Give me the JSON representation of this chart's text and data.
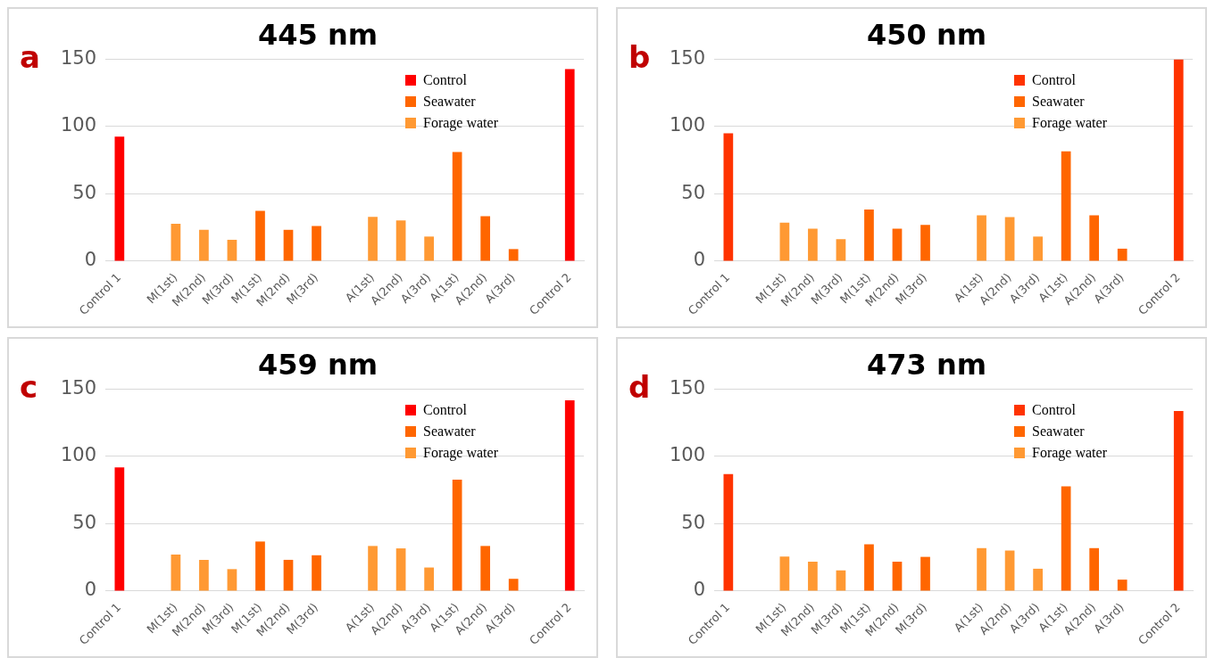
{
  "chart_data": [
    {
      "type": "bar",
      "title": "445 nm",
      "annotations": [
        "a"
      ],
      "categories": [
        "Control 1",
        null,
        "M(1st)",
        "M(2nd)",
        "M(3rd)",
        "M(1st)",
        "M(2nd)",
        "M(3rd)",
        null,
        "A(1st)",
        "A(2nd)",
        "A(3rd)",
        "A(1st)",
        "A(2nd)",
        "A(3rd)",
        null,
        "Control 2"
      ],
      "ylim": [
        0,
        150
      ],
      "yticks": [
        0,
        50,
        100,
        150
      ],
      "grid": "y",
      "legend": "top right",
      "series": [
        {
          "name": "Control",
          "color": "#ff0000",
          "values": [
            92.5,
            null,
            null,
            null,
            null,
            null,
            null,
            null,
            null,
            null,
            null,
            null,
            null,
            null,
            null,
            null,
            142.6
          ]
        },
        {
          "name": "Seawater",
          "color": "#ff6600",
          "values": [
            null,
            null,
            null,
            null,
            null,
            37.4,
            23.3,
            26.2,
            null,
            null,
            null,
            null,
            81.1,
            33.4,
            9.0,
            null,
            null
          ]
        },
        {
          "name": "Forage water",
          "color": "#ff9933",
          "values": [
            null,
            null,
            27.8,
            23.3,
            15.9,
            null,
            null,
            null,
            null,
            32.9,
            30.2,
            18.3,
            null,
            null,
            null,
            null,
            null
          ]
        }
      ]
    },
    {
      "type": "bar",
      "title": "450 nm",
      "annotations": [
        "b"
      ],
      "categories": [
        "Control 1",
        null,
        "M(1st)",
        "M(2nd)",
        "M(3rd)",
        "M(1st)",
        "M(2nd)",
        "M(3rd)",
        null,
        "A(1st)",
        "A(2nd)",
        "A(3rd)",
        "A(1st)",
        "A(2nd)",
        "A(3rd)",
        null,
        "Control 2"
      ],
      "ylim": [
        0,
        150
      ],
      "yticks": [
        0,
        50,
        100,
        150
      ],
      "grid": "y",
      "legend": "top right",
      "series": [
        {
          "name": "Control",
          "color": "#ff3300",
          "values": [
            95,
            null,
            null,
            null,
            null,
            null,
            null,
            null,
            null,
            null,
            null,
            null,
            null,
            null,
            null,
            null,
            150
          ]
        },
        {
          "name": "Seawater",
          "color": "#ff6600",
          "values": [
            null,
            null,
            null,
            null,
            null,
            38.4,
            24.1,
            27,
            null,
            null,
            null,
            null,
            81.5,
            34.1,
            9.3,
            null,
            null
          ]
        },
        {
          "name": "Forage water",
          "color": "#ff9933",
          "values": [
            null,
            null,
            28.6,
            24.1,
            16.4,
            null,
            null,
            null,
            null,
            34.1,
            32.8,
            18.3,
            null,
            null,
            null,
            null,
            null
          ]
        }
      ]
    },
    {
      "type": "bar",
      "title": "459 nm",
      "annotations": [
        "c"
      ],
      "categories": [
        "Control 1",
        null,
        "M(1st)",
        "M(2nd)",
        "M(3rd)",
        "M(1st)",
        "M(2nd)",
        "M(3rd)",
        null,
        "A(1st)",
        "A(2nd)",
        "A(3rd)",
        "A(1st)",
        "A(2nd)",
        "A(3rd)",
        null,
        "Control 2"
      ],
      "ylim": [
        0,
        150
      ],
      "yticks": [
        0,
        50,
        100,
        150
      ],
      "grid": "y",
      "legend": "top right",
      "series": [
        {
          "name": "Control",
          "color": "#ff0000",
          "values": [
            91.8,
            null,
            null,
            null,
            null,
            null,
            null,
            null,
            null,
            null,
            null,
            null,
            null,
            null,
            null,
            null,
            141.6
          ]
        },
        {
          "name": "Seawater",
          "color": "#ff6600",
          "values": [
            null,
            null,
            null,
            null,
            null,
            36.8,
            23.2,
            26.6,
            null,
            null,
            null,
            null,
            82.7,
            33.5,
            9.1,
            null,
            null
          ]
        },
        {
          "name": "Forage water",
          "color": "#ff9933",
          "values": [
            null,
            null,
            27.2,
            23.2,
            16.3,
            null,
            null,
            null,
            null,
            33.5,
            31.7,
            17.5,
            null,
            null,
            null,
            null,
            null
          ]
        }
      ]
    },
    {
      "type": "bar",
      "title": "473 nm",
      "annotations": [
        "d"
      ],
      "categories": [
        "Control 1",
        null,
        "M(1st)",
        "M(2nd)",
        "M(3rd)",
        "M(1st)",
        "M(2nd)",
        "M(3rd)",
        null,
        "A(1st)",
        "A(2nd)",
        "A(3rd)",
        "A(1st)",
        "A(2nd)",
        "A(3rd)",
        null,
        "Control 2"
      ],
      "ylim": [
        0,
        150
      ],
      "yticks": [
        0,
        50,
        100,
        150
      ],
      "grid": "y",
      "legend": "top right",
      "series": [
        {
          "name": "Control",
          "color": "#ff3300",
          "values": [
            86.8,
            null,
            null,
            null,
            null,
            null,
            null,
            null,
            null,
            null,
            null,
            null,
            null,
            null,
            null,
            null,
            133.7
          ]
        },
        {
          "name": "Seawater",
          "color": "#ff6600",
          "values": [
            null,
            null,
            null,
            null,
            null,
            34.8,
            21.9,
            25.4,
            null,
            null,
            null,
            null,
            77.7,
            31.9,
            8.5,
            null,
            null
          ]
        },
        {
          "name": "Forage water",
          "color": "#ff9933",
          "values": [
            null,
            null,
            25.7,
            21.9,
            15.3,
            null,
            null,
            null,
            null,
            31.9,
            30.1,
            16.6,
            null,
            null,
            null,
            null,
            null
          ]
        }
      ]
    }
  ]
}
